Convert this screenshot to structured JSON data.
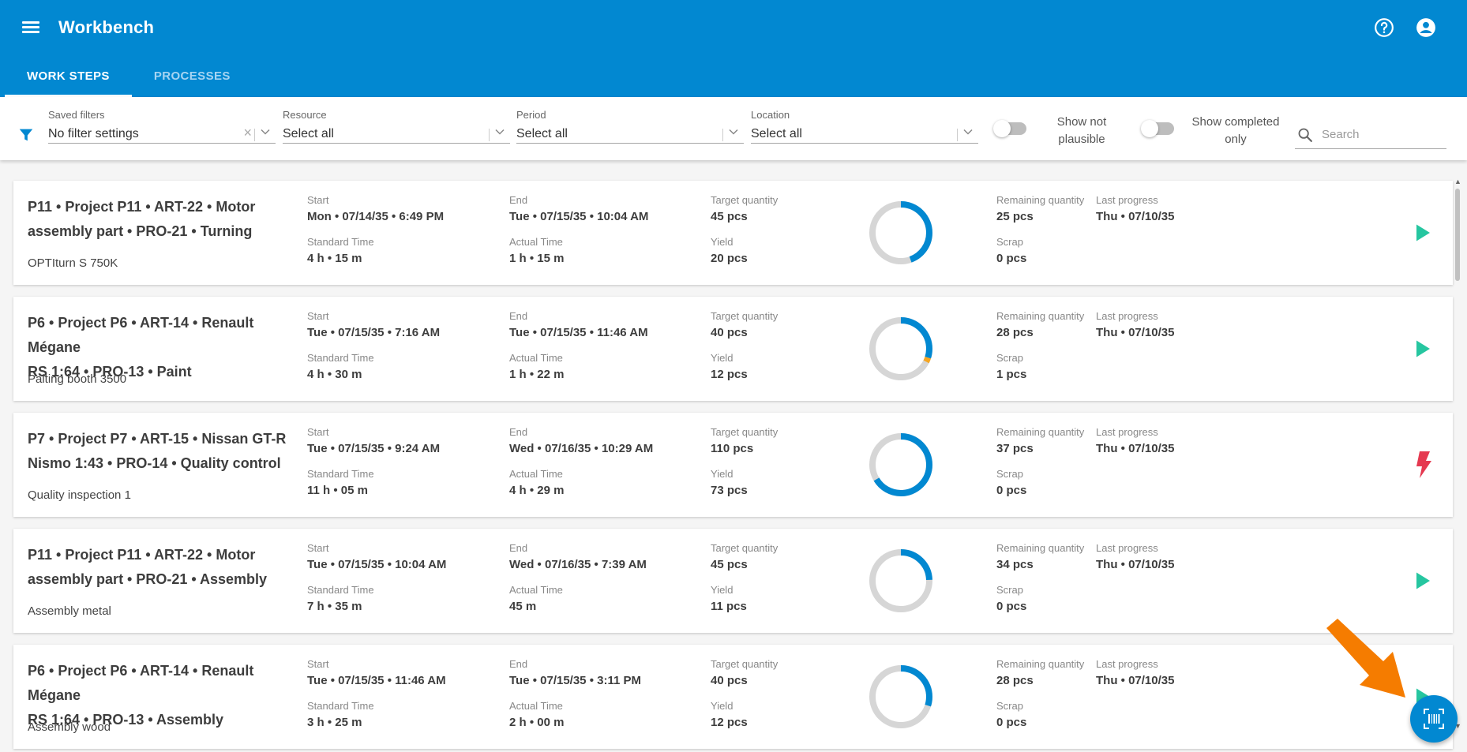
{
  "app": {
    "title": "Workbench"
  },
  "header": {
    "help_icon": "help-circle-icon",
    "account_icon": "account-circle-icon"
  },
  "tabs": [
    {
      "label": "WORK STEPS",
      "active": true
    },
    {
      "label": "PROCESSES",
      "active": false
    }
  ],
  "filters": {
    "saved": {
      "label": "Saved filters",
      "value": "No filter settings"
    },
    "resource": {
      "label": "Resource",
      "value": "Select all"
    },
    "period": {
      "label": "Period",
      "value": "Select all"
    },
    "location": {
      "label": "Location",
      "value": "Select all"
    },
    "show_not_plausible": {
      "line1": "Show not",
      "line2": "plausible",
      "checked": false
    },
    "show_completed": {
      "line1": "Show completed",
      "line2": "only",
      "checked": false
    },
    "search_placeholder": "Search"
  },
  "field_labels": {
    "start": "Start",
    "end": "End",
    "standard_time": "Standard Time",
    "actual_time": "Actual Time",
    "target_quantity": "Target quantity",
    "yield": "Yield",
    "remaining_quantity": "Remaining quantity",
    "scrap": "Scrap",
    "last_progress": "Last progress"
  },
  "colors": {
    "primary": "#0288d1",
    "play": "#26c6a0",
    "interrupt": "#e53950",
    "progress": "#0288d1",
    "scrap": "#f5a623",
    "track": "#d6d6d6",
    "annotation": "#f57c00"
  },
  "work_steps": [
    {
      "title_line1": "P11 • Project P11 • ART-22 • Motor",
      "title_line2": "assembly part • PRO-21 • Turning",
      "resource": "OPTIturn S 750K",
      "start": "Mon • 07/14/35 • 6:49 PM",
      "end": "Tue • 07/15/35 • 10:04 AM",
      "standard_time": "4 h • 15 m",
      "actual_time": "1 h • 15 m",
      "target_quantity": "45 pcs",
      "yield": "20 pcs",
      "remaining_quantity": "25 pcs",
      "scrap": "0 pcs",
      "last_progress": "Thu • 07/10/35",
      "progress": 20,
      "target": 45,
      "scrap_count": 0,
      "action": "play-icon"
    },
    {
      "title_line1": "P6 • Project P6 • ART-14 • Renault Mégane",
      "title_line2": "RS 1:64 • PRO-13 • Paint",
      "resource": "Paiting booth 3500",
      "start": "Tue • 07/15/35 • 7:16 AM",
      "end": "Tue • 07/15/35 • 11:46 AM",
      "standard_time": "4 h • 30 m",
      "actual_time": "1 h • 22 m",
      "target_quantity": "40 pcs",
      "yield": "12 pcs",
      "remaining_quantity": "28 pcs",
      "scrap": "1 pcs",
      "last_progress": "Thu • 07/10/35",
      "progress": 12,
      "target": 40,
      "scrap_count": 1,
      "action": "play-icon"
    },
    {
      "title_line1": "P7 • Project P7 • ART-15 • Nissan GT-R",
      "title_line2": "Nismo 1:43 • PRO-14 • Quality control",
      "resource": "Quality inspection 1",
      "start": "Tue • 07/15/35 • 9:24 AM",
      "end": "Wed • 07/16/35 • 10:29 AM",
      "standard_time": "11 h • 05 m",
      "actual_time": "4 h • 29 m",
      "target_quantity": "110 pcs",
      "yield": "73 pcs",
      "remaining_quantity": "37 pcs",
      "scrap": "0 pcs",
      "last_progress": "Thu • 07/10/35",
      "progress": 73,
      "target": 110,
      "scrap_count": 0,
      "action": "interrupt-icon"
    },
    {
      "title_line1": "P11 • Project P11 • ART-22 • Motor",
      "title_line2": "assembly part • PRO-21 • Assembly",
      "resource": "Assembly metal",
      "start": "Tue • 07/15/35 • 10:04 AM",
      "end": "Wed • 07/16/35 • 7:39 AM",
      "standard_time": "7 h • 35 m",
      "actual_time": "45 m",
      "target_quantity": "45 pcs",
      "yield": "11 pcs",
      "remaining_quantity": "34 pcs",
      "scrap": "0 pcs",
      "last_progress": "Thu • 07/10/35",
      "progress": 11,
      "target": 45,
      "scrap_count": 0,
      "action": "play-icon"
    },
    {
      "title_line1": "P6 • Project P6 • ART-14 • Renault Mégane",
      "title_line2": "RS 1:64 • PRO-13 • Assembly",
      "resource": "Assembly wood",
      "start": "Tue • 07/15/35 • 11:46 AM",
      "end": "Tue • 07/15/35 • 3:11 PM",
      "standard_time": "3 h • 25 m",
      "actual_time": "2 h • 00 m",
      "target_quantity": "40 pcs",
      "yield": "12 pcs",
      "remaining_quantity": "28 pcs",
      "scrap": "0 pcs",
      "last_progress": "Thu • 07/10/35",
      "progress": 12,
      "target": 40,
      "scrap_count": 0,
      "action": "play-icon"
    }
  ],
  "fab": {
    "icon": "barcode-scan-icon"
  }
}
